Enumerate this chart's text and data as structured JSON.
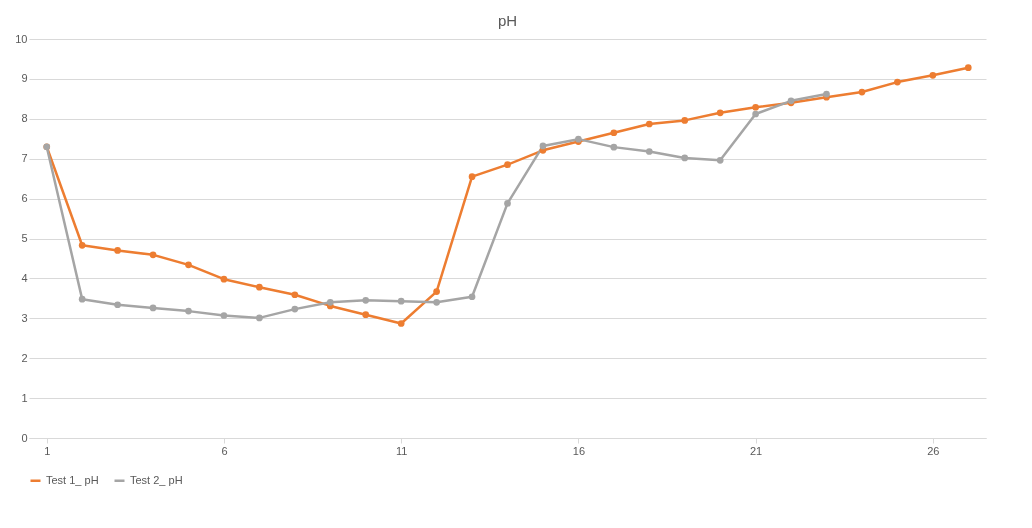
{
  "chart_data": {
    "type": "line",
    "title": "pH",
    "x": [
      1,
      2,
      3,
      4,
      5,
      6,
      7,
      8,
      9,
      10,
      11,
      12,
      13,
      14,
      15,
      16,
      17,
      18,
      19,
      20,
      21,
      22,
      23,
      24,
      25,
      26,
      27
    ],
    "xlim": [
      0.5,
      27.5
    ],
    "xticks": [
      1,
      6,
      11,
      16,
      21,
      26
    ],
    "ylim": [
      0,
      10
    ],
    "yticks": [
      0,
      1,
      2,
      3,
      4,
      5,
      6,
      7,
      8,
      9,
      10
    ],
    "series": [
      {
        "name": "Test 1_ pH",
        "color": "#ed7d31",
        "values": [
          7.3,
          4.83,
          4.7,
          4.59,
          4.34,
          3.98,
          3.78,
          3.59,
          3.31,
          3.09,
          2.87,
          3.67,
          6.55,
          6.85,
          7.21,
          7.43,
          7.65,
          7.87,
          7.96,
          8.15,
          8.29,
          8.4,
          8.54,
          8.67,
          8.92,
          9.09,
          9.28
        ]
      },
      {
        "name": "Test 2_ pH",
        "color": "#a5a5a5",
        "values": [
          7.3,
          3.48,
          3.34,
          3.26,
          3.18,
          3.07,
          3.01,
          3.23,
          3.4,
          3.45,
          3.43,
          3.4,
          3.54,
          5.88,
          7.32,
          7.49,
          7.29,
          7.18,
          7.02,
          6.96,
          8.12,
          8.45,
          8.62,
          null,
          null,
          null,
          null
        ]
      }
    ],
    "grid": "y",
    "legend": "bottom",
    "marker": "circle",
    "line_style": "solid"
  }
}
